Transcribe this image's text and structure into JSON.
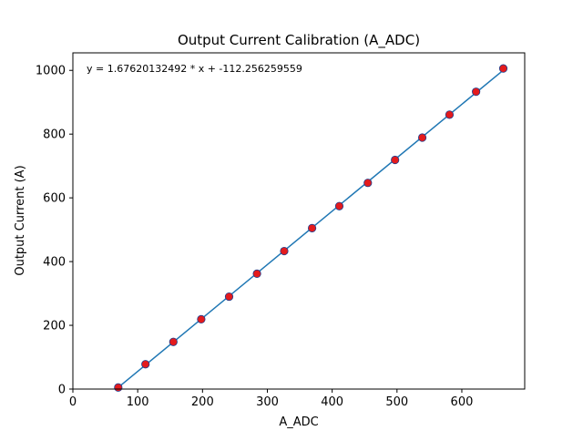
{
  "colors": {
    "fit_line": "#1f77b4",
    "marker_fill": "#e41a1c",
    "marker_edge": "#1f3f8f",
    "axes": "#000000",
    "background": "#ffffff"
  },
  "chart_data": {
    "type": "scatter",
    "title": "Output Current Calibration (A_ADC)",
    "xlabel": "A_ADC",
    "ylabel": "Output Current (A)",
    "xlim": [
      0,
      697
    ],
    "ylim": [
      0,
      1055
    ],
    "xticks": [
      0,
      100,
      200,
      300,
      400,
      500,
      600
    ],
    "yticks": [
      0,
      200,
      400,
      600,
      800,
      1000
    ],
    "xtick_labels": [
      "0",
      "100",
      "200",
      "300",
      "400",
      "500",
      "600"
    ],
    "ytick_labels": [
      "0",
      "200",
      "400",
      "600",
      "800",
      "1000"
    ],
    "grid": false,
    "annotation": "y = 1.67620132492 * x + -112.256259559",
    "fit": {
      "slope": 1.67620132492,
      "intercept": -112.256259559,
      "x_range": [
        70,
        665
      ]
    },
    "series": [
      {
        "type": "scatter",
        "x": [
          70,
          112,
          155,
          198,
          241,
          284,
          326,
          369,
          411,
          455,
          497,
          539,
          581,
          622,
          664
        ],
        "y": [
          5,
          78,
          148,
          219,
          290,
          362,
          433,
          505,
          574,
          647,
          719,
          789,
          861,
          933,
          1006
        ]
      }
    ]
  }
}
